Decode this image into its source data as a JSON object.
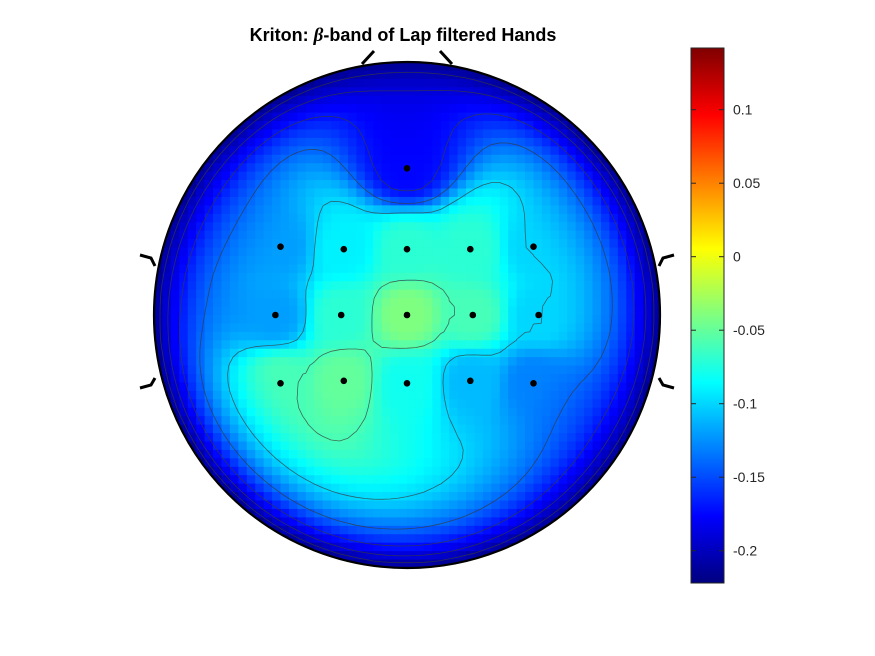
{
  "chart_data": {
    "type": "heatmap",
    "subtype": "scalp-topography",
    "title_prefix": "Kriton: ",
    "title_symbol": "β",
    "title_suffix": "-band of Lap filtered Hands",
    "colormap": "jet",
    "clim": [
      -0.222,
      0.142
    ],
    "colorbar_ticks": [
      {
        "value": 0.1,
        "label": "0.1"
      },
      {
        "value": 0.05,
        "label": "0.05"
      },
      {
        "value": 0,
        "label": "0"
      },
      {
        "value": -0.05,
        "label": "-0.05"
      },
      {
        "value": -0.1,
        "label": "-0.1"
      },
      {
        "value": -0.15,
        "label": "-0.15"
      },
      {
        "value": -0.2,
        "label": "-0.2"
      }
    ],
    "contour_levels": [
      -0.06,
      -0.1,
      -0.14,
      -0.17,
      -0.19,
      -0.205
    ],
    "electrodes": [
      {
        "x": 0.0,
        "y": 0.58,
        "value": -0.175
      },
      {
        "x": -0.5,
        "y": 0.27,
        "value": -0.12
      },
      {
        "x": -0.25,
        "y": 0.26,
        "value": -0.09
      },
      {
        "x": 0.0,
        "y": 0.26,
        "value": -0.07
      },
      {
        "x": 0.25,
        "y": 0.26,
        "value": -0.07
      },
      {
        "x": 0.5,
        "y": 0.27,
        "value": -0.1
      },
      {
        "x": -0.52,
        "y": 0.0,
        "value": -0.12
      },
      {
        "x": -0.26,
        "y": 0.0,
        "value": -0.07
      },
      {
        "x": 0.0,
        "y": 0.0,
        "value": -0.04
      },
      {
        "x": 0.26,
        "y": 0.0,
        "value": -0.06
      },
      {
        "x": 0.52,
        "y": 0.0,
        "value": -0.1
      },
      {
        "x": -0.5,
        "y": -0.27,
        "value": -0.06
      },
      {
        "x": -0.25,
        "y": -0.26,
        "value": -0.05
      },
      {
        "x": 0.0,
        "y": -0.27,
        "value": -0.08
      },
      {
        "x": 0.25,
        "y": -0.26,
        "value": -0.11
      },
      {
        "x": 0.5,
        "y": -0.27,
        "value": -0.13
      }
    ]
  }
}
